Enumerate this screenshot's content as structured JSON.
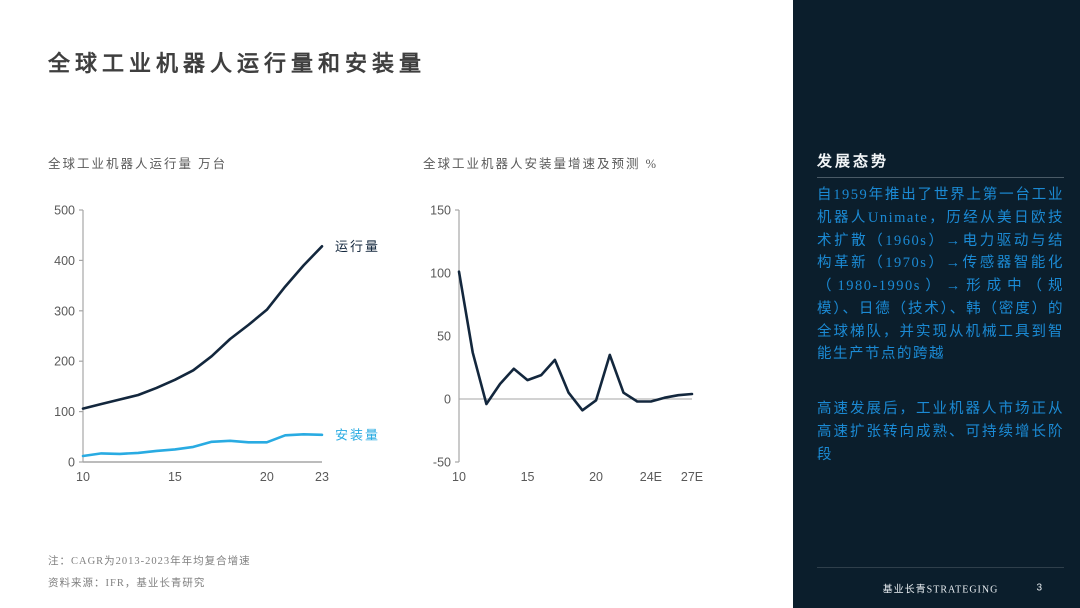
{
  "slide": {
    "title": "全球工业机器人运行量和安装量",
    "notes": [
      "注：CAGR为2013-2023年年均复合增速",
      "资料来源：IFR，基业长青研究"
    ],
    "brand": "基业长青STRATEGING",
    "page_number": "3"
  },
  "sidebar": {
    "heading": "发展态势",
    "paragraphs": [
      "自1959年推出了世界上第一台工业机器人Unimate，历经从美日欧技术扩散（1960s）→电力驱动与结构革新（1970s）→传感器智能化（1980-1990s）→形成中（规模）、日德（技术）、韩（密度）的全球梯队，并实现从机械工具到智能生产节点的跨越",
      "高速发展后，工业机器人市场正从高速扩张转向成熟、可持续增长阶段"
    ],
    "colors": {
      "background": "#0b1e2c",
      "heading_text": "#f2f5f7",
      "body_text": "#1b8ad4",
      "divider": "#4a5a66"
    }
  },
  "chart_data": [
    {
      "type": "line",
      "title": "全球工业机器人运行量 万台",
      "x": [
        10,
        11,
        12,
        13,
        14,
        15,
        16,
        17,
        18,
        19,
        20,
        21,
        22,
        23
      ],
      "xlim": [
        10,
        23
      ],
      "ylim": [
        0,
        500
      ],
      "yticks": [
        0,
        100,
        200,
        300,
        400,
        500
      ],
      "xticks": [
        {
          "v": 10,
          "label": "10"
        },
        {
          "v": 15,
          "label": "15"
        },
        {
          "v": 20,
          "label": "20"
        },
        {
          "v": 23,
          "label": "23"
        }
      ],
      "axes": {
        "y_line": true,
        "x_line": true,
        "zero_line": false,
        "ytick_marks": "all"
      },
      "grid": false,
      "legend_position": "line-end-labels",
      "series": [
        {
          "name": "运行量",
          "color": "#13273d",
          "values": [
            106,
            115,
            124,
            133,
            147,
            163,
            182,
            210,
            244,
            272,
            302,
            348,
            390,
            428
          ]
        },
        {
          "name": "安装量",
          "color": "#29abe2",
          "values": [
            12,
            17,
            16,
            18,
            22,
            25,
            30,
            40,
            42,
            39,
            39,
            53,
            55,
            54
          ]
        }
      ]
    },
    {
      "type": "line",
      "title": "全球工业机器人安装量增速及预测 %",
      "x": [
        10,
        11,
        12,
        13,
        14,
        15,
        16,
        17,
        18,
        19,
        20,
        21,
        22,
        23,
        24,
        25,
        26,
        27
      ],
      "xlim": [
        10,
        27
      ],
      "ylim": [
        -50,
        150
      ],
      "yticks": [
        -50,
        0,
        50,
        100,
        150
      ],
      "xticks": [
        {
          "v": 10,
          "label": "10"
        },
        {
          "v": 15,
          "label": "15"
        },
        {
          "v": 20,
          "label": "20"
        },
        {
          "v": 24,
          "label": "24E"
        },
        {
          "v": 27,
          "label": "27E"
        }
      ],
      "axes": {
        "y_line": true,
        "x_line": false,
        "zero_line": true,
        "ytick_marks": "ends"
      },
      "grid": false,
      "legend_position": "none",
      "series": [
        {
          "name": "",
          "color": "#13273d",
          "values": [
            101,
            37,
            -4,
            12,
            24,
            15,
            19,
            31,
            5,
            -9,
            -1,
            35,
            5,
            -2,
            -2,
            1,
            3,
            4
          ]
        }
      ]
    }
  ],
  "chart_style": {
    "axis_color": "#a6a6a6",
    "tick_text_color": "#595959"
  }
}
